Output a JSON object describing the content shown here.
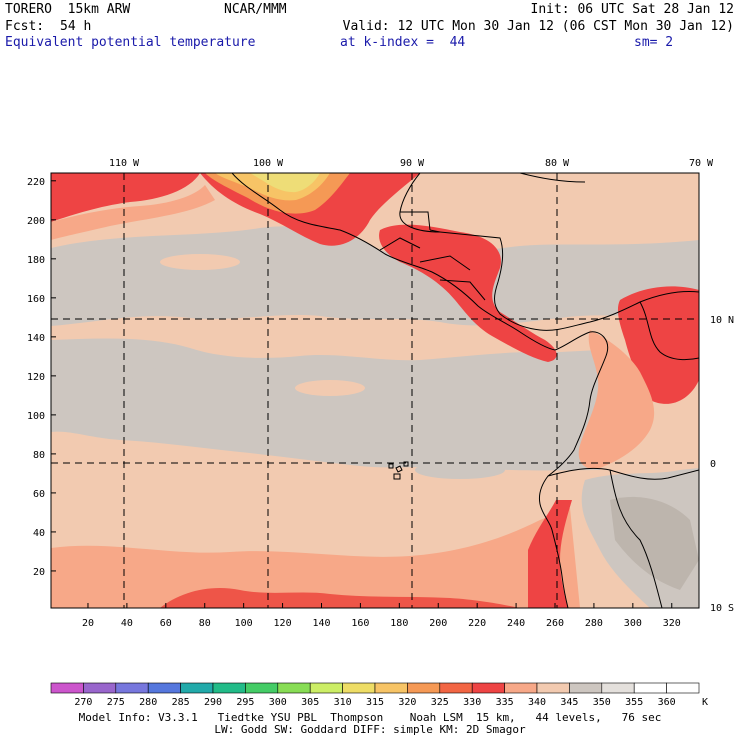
{
  "header": {
    "model": "TORERO  15km ARW",
    "org": "NCAR/MMM",
    "init": "Init: 06 UTC Sat 28 Jan 12",
    "fcst_label": "Fcst:",
    "fcst_hours": "54 h",
    "valid": "Valid: 12 UTC Mon 30 Jan 12 (06 CST Mon 30 Jan 12)",
    "field": "Equivalent potential temperature",
    "level": "at k-index =  44",
    "smoothing": "sm= 2"
  },
  "map": {
    "top_lon_labels": [
      "110 W",
      "100 W",
      "90 W",
      "80 W",
      "70 W"
    ],
    "right_lat_labels": [
      "10 N",
      "0",
      "10 S"
    ],
    "y_ticks": [
      "20",
      "40",
      "60",
      "80",
      "100",
      "120",
      "140",
      "160",
      "180",
      "200",
      "220"
    ],
    "x_ticks": [
      "20",
      "40",
      "60",
      "80",
      "100",
      "120",
      "140",
      "160",
      "180",
      "200",
      "220",
      "240",
      "260",
      "280",
      "300",
      "320"
    ],
    "x_range": [
      1,
      334
    ],
    "y_range": [
      1,
      224
    ]
  },
  "colorbar": {
    "labels": [
      "270",
      "275",
      "280",
      "285",
      "290",
      "295",
      "300",
      "305",
      "310",
      "315",
      "320",
      "325",
      "330",
      "335",
      "340",
      "345",
      "350",
      "355",
      "360"
    ],
    "unit": "K",
    "colors": [
      "#cc55cc",
      "#9966cc",
      "#7777dd",
      "#5577dd",
      "#22aaaa",
      "#22bb88",
      "#44cc66",
      "#88dd55",
      "#ccee66",
      "#eedd66",
      "#f7c466",
      "#f59955",
      "#f26644",
      "#ee4444",
      "#f7a888",
      "#f2cab0",
      "#cdc6c0",
      "#e4e0dc",
      "#ffffff",
      "#ffffff"
    ]
  },
  "model_info": {
    "line1": "Model Info: V3.3.1   Tiedtke YSU PBL  Thompson    Noah LSM  15 km,   44 levels,   76 sec",
    "line2": "LW: Godd SW: Goddard DIFF: simple KM: 2D Smagor"
  }
}
